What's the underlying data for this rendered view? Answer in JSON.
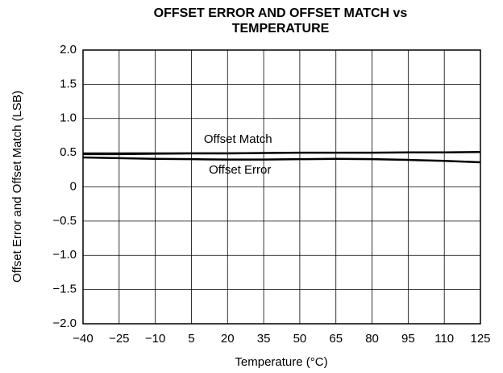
{
  "chart_data": {
    "type": "line",
    "title": [
      "OFFSET ERROR AND OFFSET MATCH vs",
      "TEMPERATURE"
    ],
    "x_label": "Temperature (°C)",
    "y_label": "Offset Error and Offset Match (LSB)",
    "x": [
      -40,
      -25,
      -10,
      5,
      20,
      35,
      50,
      65,
      80,
      95,
      110,
      125
    ],
    "series": [
      {
        "name": "Offset Match",
        "color": "#000000",
        "values": [
          0.48,
          0.48,
          0.485,
          0.49,
          0.49,
          0.495,
          0.5,
          0.5,
          0.5,
          0.505,
          0.505,
          0.51
        ]
      },
      {
        "name": "Offset Error",
        "color": "#000000",
        "values": [
          0.43,
          0.42,
          0.41,
          0.405,
          0.4,
          0.4,
          0.405,
          0.41,
          0.405,
          0.395,
          0.38,
          0.36
        ]
      }
    ],
    "xlim": [
      -40,
      125
    ],
    "xticks": [
      {
        "value": -40,
        "label": "−40"
      },
      {
        "value": -25,
        "label": "−25"
      },
      {
        "value": -10,
        "label": "−10"
      },
      5,
      20,
      35,
      50,
      65,
      80,
      95,
      110,
      125
    ],
    "ylim": [
      -2,
      2
    ],
    "yticks": [
      {
        "value": -2,
        "label": "−2.0"
      },
      {
        "value": -1.5,
        "label": "−1.5"
      },
      {
        "value": -1,
        "label": "−1.0"
      },
      {
        "value": -0.5,
        "label": "−0.5"
      },
      0,
      0.5,
      {
        "value": 1,
        "label": "1.0"
      },
      1.5,
      {
        "value": 2,
        "label": "2.0"
      }
    ],
    "grid": true
  }
}
